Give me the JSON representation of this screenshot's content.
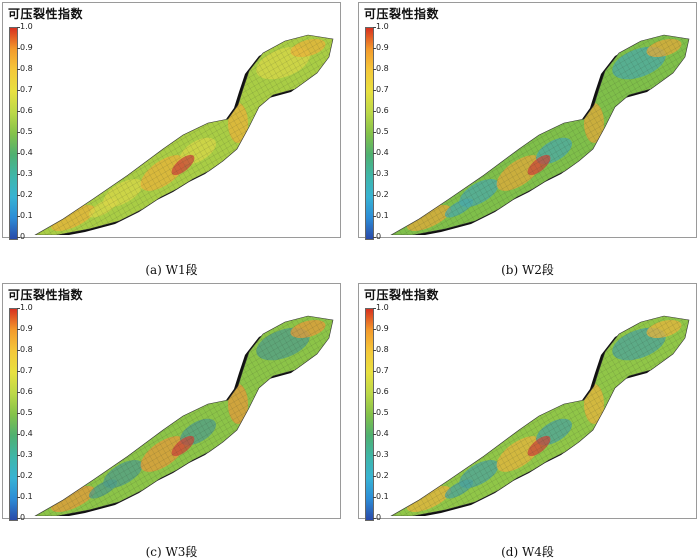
{
  "colorbar": {
    "title": "可压裂性指数",
    "ticks": [
      "1.0",
      "0.9",
      "0.8",
      "0.7",
      "0.6",
      "0.5",
      "0.4",
      "0.3",
      "0.2",
      "0.1",
      "0"
    ],
    "gradient_colors": [
      "#d7301f",
      "#f39a2c",
      "#f4c83a",
      "#e8e040",
      "#bcd848",
      "#84c24a",
      "#4fb071",
      "#3fb6a8",
      "#38b3d3",
      "#2c8cd6",
      "#2a4aa8"
    ]
  },
  "panels": [
    {
      "caption": "(a)  W1段",
      "base_color": "#a9cd45",
      "highlight": "#e9b23a",
      "accent": "#d8d648"
    },
    {
      "caption": "(b)  W2段",
      "base_color": "#7fbf4a",
      "highlight": "#e3a83a",
      "accent": "#4aa8a8"
    },
    {
      "caption": "(c)  W3段",
      "base_color": "#8cc448",
      "highlight": "#e59a3a",
      "accent": "#4f9c8a"
    },
    {
      "caption": "(d)  W4段",
      "base_color": "#90c648",
      "highlight": "#e8b33c",
      "accent": "#4ba29c"
    }
  ]
}
